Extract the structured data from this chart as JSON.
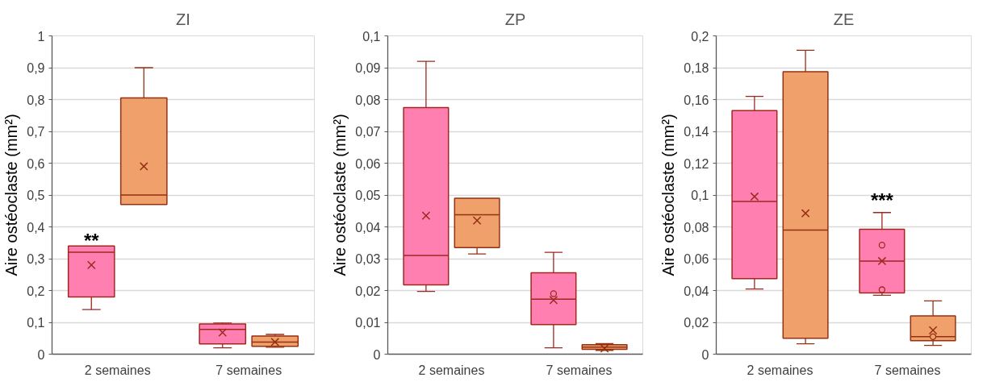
{
  "chart_data": [
    {
      "type": "box",
      "title": "ZI",
      "ylabel": "Aire ostéoclaste (mm²)",
      "categories": [
        "2 semaines",
        "7 semaines"
      ],
      "grid": "y",
      "ylim": [
        0,
        1
      ],
      "yticks": [
        0,
        {
          "value": 0.1,
          "label": "0,1"
        },
        {
          "value": 0.2,
          "label": "0,2"
        },
        {
          "value": 0.3,
          "label": "0,3"
        },
        {
          "value": 0.4,
          "label": "0,4"
        },
        {
          "value": 0.5,
          "label": "0,5"
        },
        {
          "value": 0.6,
          "label": "0,6"
        },
        {
          "value": 0.7,
          "label": "0,7"
        },
        {
          "value": 0.8,
          "label": "0,8"
        },
        {
          "value": 0.9,
          "label": "0,9"
        },
        1
      ],
      "annotations": [
        {
          "text": "**",
          "x": "2 semaines",
          "y": 0.34
        }
      ],
      "series": [
        {
          "color": "#ff80b0",
          "boxes": [
            {
              "low": 0.14,
              "q1": 0.18,
              "median": 0.32,
              "q3": 0.34,
              "high": 0.34,
              "mean": 0.28
            },
            {
              "low": 0.02,
              "q1": 0.032,
              "median": 0.078,
              "q3": 0.095,
              "high": 0.098,
              "mean": 0.068
            }
          ]
        },
        {
          "color": "#f0a06a",
          "boxes": [
            {
              "low": 0.47,
              "q1": 0.47,
              "median": 0.5,
              "q3": 0.805,
              "high": 0.9,
              "mean": 0.59
            },
            {
              "low": 0.022,
              "q1": 0.025,
              "median": 0.038,
              "q3": 0.057,
              "high": 0.062,
              "mean": 0.038
            }
          ]
        }
      ]
    },
    {
      "type": "box",
      "title": "ZP",
      "ylabel": "Aire ostéoclaste (mm²)",
      "categories": [
        "2 semaines",
        "7 semaines"
      ],
      "grid": "y",
      "ylim": [
        0,
        0.1
      ],
      "yticks": [
        0,
        {
          "value": 0.01,
          "label": "0,01"
        },
        {
          "value": 0.02,
          "label": "0,02"
        },
        {
          "value": 0.03,
          "label": "0,03"
        },
        {
          "value": 0.04,
          "label": "0,04"
        },
        {
          "value": 0.05,
          "label": "0,05"
        },
        {
          "value": 0.06,
          "label": "0,06"
        },
        {
          "value": 0.07,
          "label": "0,07"
        },
        {
          "value": 0.08,
          "label": "0,08"
        },
        {
          "value": 0.09,
          "label": "0,09"
        },
        {
          "value": 0.1,
          "label": "0,1"
        }
      ],
      "series": [
        {
          "color": "#ff80b0",
          "boxes": [
            {
              "low": 0.0197,
              "q1": 0.0218,
              "median": 0.031,
              "q3": 0.0775,
              "high": 0.092,
              "mean": 0.0435
            },
            {
              "low": 0.002,
              "q1": 0.0093,
              "median": 0.0173,
              "q3": 0.0256,
              "high": 0.032,
              "mean": 0.017,
              "outliers": [
                0.019
              ]
            }
          ]
        },
        {
          "color": "#f0a06a",
          "boxes": [
            {
              "low": 0.0315,
              "q1": 0.0335,
              "median": 0.0438,
              "q3": 0.049,
              "high": 0.049,
              "mean": 0.042
            },
            {
              "low": 0.0012,
              "q1": 0.0015,
              "median": 0.0022,
              "q3": 0.003,
              "high": 0.0033,
              "mean": 0.0018
            }
          ]
        }
      ]
    },
    {
      "type": "box",
      "title": "ZE",
      "ylabel": "Aire ostéoclaste (mm²)",
      "categories": [
        "2 semaines",
        "7 semaines"
      ],
      "grid": "y",
      "ylim": [
        0,
        0.2
      ],
      "yticks": [
        0,
        {
          "value": 0.02,
          "label": "0,02"
        },
        {
          "value": 0.04,
          "label": "0,04"
        },
        {
          "value": 0.06,
          "label": "0,06"
        },
        {
          "value": 0.08,
          "label": "0,08"
        },
        {
          "value": 0.1,
          "label": "0,1"
        },
        {
          "value": 0.12,
          "label": "0,12"
        },
        {
          "value": 0.14,
          "label": "0,14"
        },
        {
          "value": 0.16,
          "label": "0,16"
        },
        {
          "value": 0.18,
          "label": "0,18"
        },
        {
          "value": 0.2,
          "label": "0,2"
        }
      ],
      "annotations": [
        "***"
      ],
      "series": [
        {
          "color": "#ff80b0",
          "boxes": [
            {
              "low": 0.041,
              "q1": 0.0475,
              "median": 0.096,
              "q3": 0.153,
              "high": 0.162,
              "mean": 0.099
            },
            {
              "low": 0.037,
              "q1": 0.0385,
              "median": 0.0585,
              "q3": 0.0785,
              "high": 0.089,
              "mean": 0.0585,
              "outliers": [
                0.0685,
                0.0405
              ]
            }
          ]
        },
        {
          "color": "#f0a06a",
          "boxes": [
            {
              "low": 0.0065,
              "q1": 0.01,
              "median": 0.078,
              "q3": 0.1775,
              "high": 0.191,
              "mean": 0.0885
            },
            {
              "low": 0.0055,
              "q1": 0.0085,
              "median": 0.011,
              "q3": 0.024,
              "high": 0.0335,
              "mean": 0.015,
              "outliers": [
                0.011
              ]
            }
          ]
        }
      ]
    }
  ]
}
